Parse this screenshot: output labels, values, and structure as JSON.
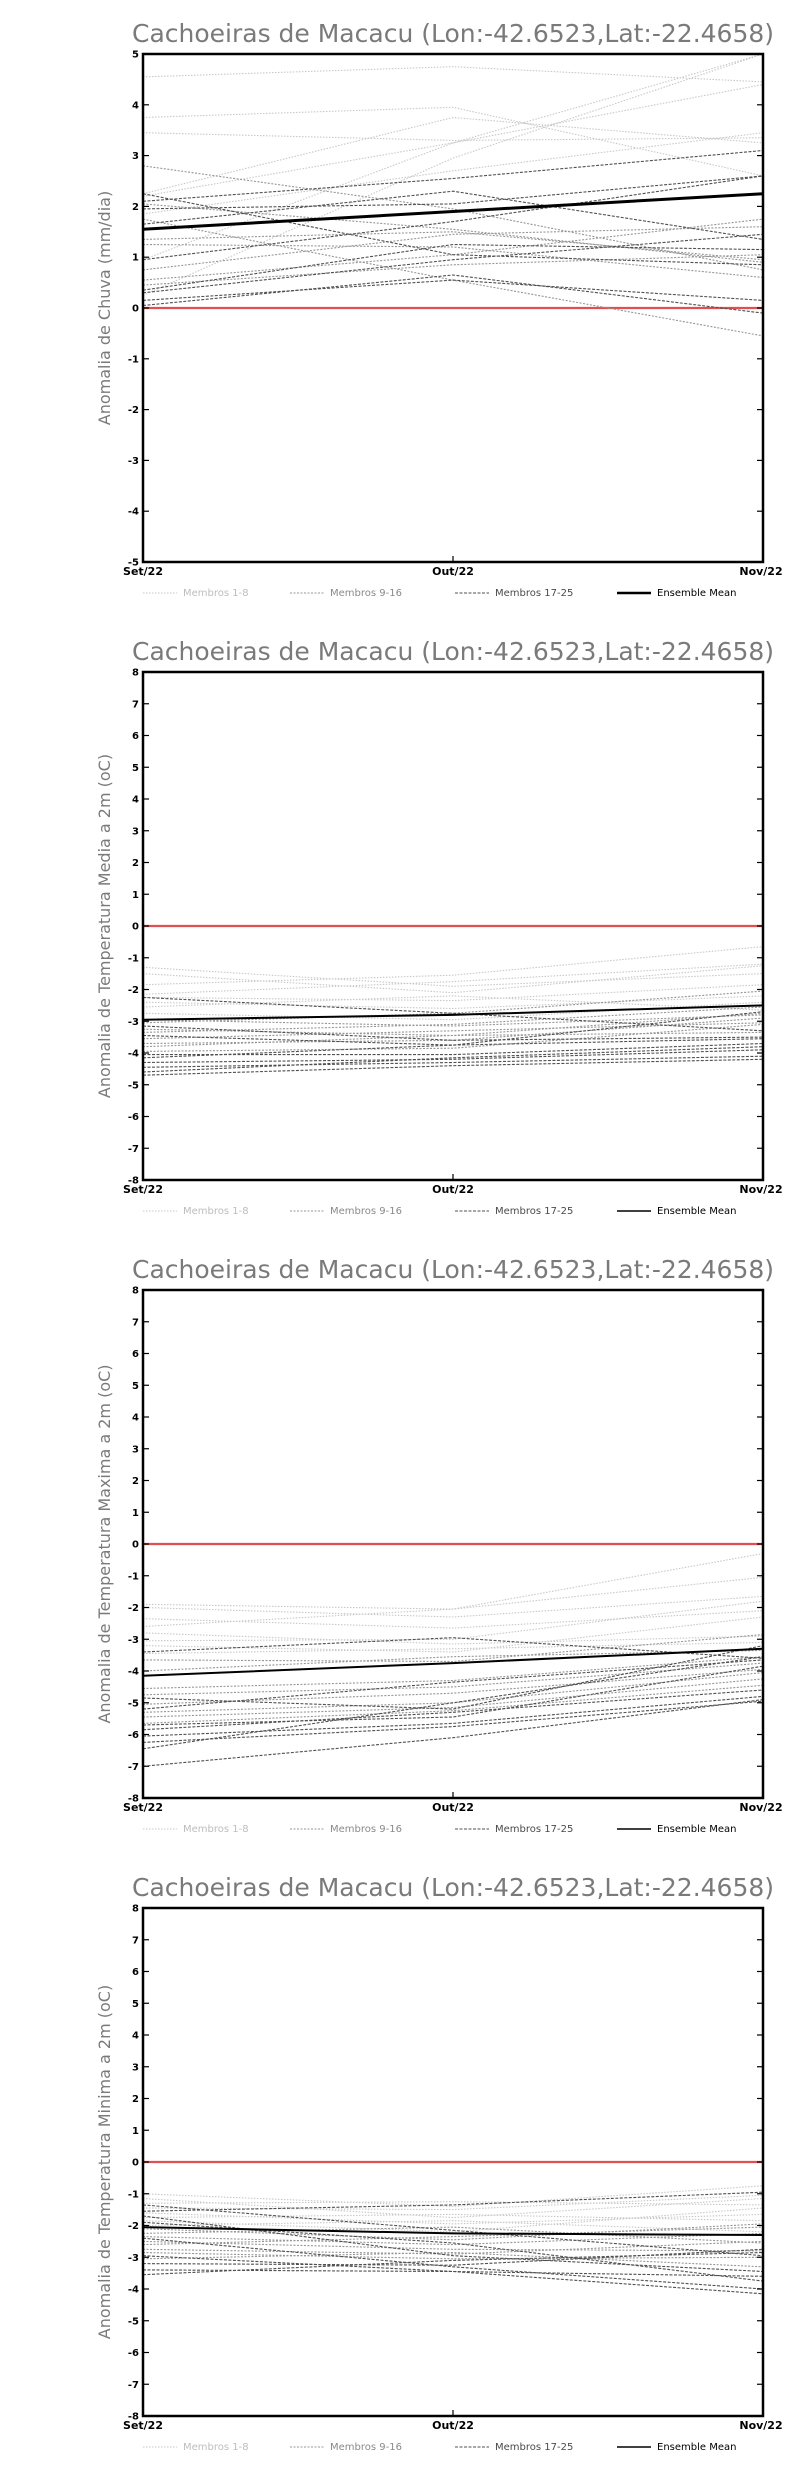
{
  "chart_data": [
    {
      "type": "line",
      "title": "Cachoeiras de Macacu (Lon:-42.6523,Lat:-22.4658)",
      "ylabel": "Anomalia de Chuva (mm/dia)",
      "xlabel": "",
      "categories": [
        "Set/22",
        "Out/22",
        "Nov/22"
      ],
      "ylim": [
        -5,
        5
      ],
      "yticks": [
        -5,
        -4,
        -3,
        -2,
        -1,
        0,
        1,
        2,
        3,
        4,
        5
      ],
      "zero_line_color": "#e05050",
      "legend": [
        "Membros 1-8",
        "Membros 9-16",
        "Membros 17-25",
        "Ensemble Mean"
      ],
      "legend_placement": "bottom",
      "grid": false,
      "ensemble_mean": [
        1.55,
        1.9,
        2.25
      ],
      "members": [
        [
          4.55,
          4.75,
          4.45
        ],
        [
          3.75,
          3.95,
          2.6
        ],
        [
          2.25,
          3.75,
          3.25
        ],
        [
          2.2,
          3.25,
          4.4
        ],
        [
          0.95,
          3.25,
          5.0
        ],
        [
          0.25,
          2.95,
          5.0
        ],
        [
          1.85,
          2.7,
          3.45
        ],
        [
          3.45,
          3.3,
          3.35
        ],
        [
          2.8,
          1.95,
          0.75
        ],
        [
          2.05,
          1.55,
          0.9
        ],
        [
          1.75,
          0.55,
          -0.55
        ],
        [
          1.35,
          1.5,
          0.95
        ],
        [
          1.25,
          1.2,
          0.6
        ],
        [
          0.75,
          1.45,
          1.6
        ],
        [
          0.55,
          1.05,
          1.75
        ],
        [
          0.45,
          0.85,
          1.05
        ],
        [
          0.3,
          0.95,
          1.45
        ],
        [
          0.15,
          0.55,
          0.15
        ],
        [
          1.95,
          2.05,
          2.6
        ],
        [
          2.25,
          1.05,
          0.85
        ],
        [
          0.95,
          1.7,
          2.6
        ],
        [
          0.35,
          1.25,
          1.15
        ],
        [
          1.65,
          2.3,
          1.35
        ],
        [
          2.1,
          2.55,
          3.1
        ],
        [
          0.05,
          0.65,
          -0.1
        ]
      ]
    },
    {
      "type": "line",
      "title": "Cachoeiras de Macacu (Lon:-42.6523,Lat:-22.4658)",
      "ylabel": "Anomalia de Temperatura Media a 2m (oC)",
      "xlabel": "",
      "categories": [
        "Set/22",
        "Out/22",
        "Nov/22"
      ],
      "ylim": [
        -8,
        8
      ],
      "yticks": [
        -8,
        -7,
        -6,
        -5,
        -4,
        -3,
        -2,
        -1,
        0,
        1,
        2,
        3,
        4,
        5,
        6,
        7,
        8
      ],
      "zero_line_color": "#e05050",
      "legend": [
        "Membros 1-8",
        "Membros 9-16",
        "Membros 17-25",
        "Ensemble Mean"
      ],
      "legend_placement": "bottom",
      "grid": false,
      "ensemble_mean": [
        -2.95,
        -2.8,
        -2.5
      ],
      "members": [
        [
          -1.3,
          -1.9,
          -1.5
        ],
        [
          -1.5,
          -2.1,
          -1.25
        ],
        [
          -1.85,
          -1.55,
          -0.65
        ],
        [
          -2.15,
          -1.75,
          -1.2
        ],
        [
          -2.25,
          -2.35,
          -1.85
        ],
        [
          -2.4,
          -2.6,
          -2.2
        ],
        [
          -2.55,
          -2.2,
          -2.65
        ],
        [
          -2.75,
          -2.95,
          -2.4
        ],
        [
          -2.95,
          -3.15,
          -2.8
        ],
        [
          -3.05,
          -2.75,
          -2.05
        ],
        [
          -3.25,
          -3.45,
          -2.75
        ],
        [
          -3.35,
          -3.1,
          -2.55
        ],
        [
          -3.55,
          -3.3,
          -3.05
        ],
        [
          -3.7,
          -3.6,
          -2.9
        ],
        [
          -3.8,
          -3.45,
          -3.35
        ],
        [
          -3.95,
          -3.85,
          -3.1
        ],
        [
          -4.05,
          -4.05,
          -3.7
        ],
        [
          -4.15,
          -3.75,
          -3.55
        ],
        [
          -4.3,
          -4.2,
          -3.9
        ],
        [
          -4.45,
          -4.3,
          -4.1
        ],
        [
          -4.6,
          -4.15,
          -3.8
        ],
        [
          -4.7,
          -4.4,
          -4.2
        ],
        [
          -2.25,
          -2.75,
          -3.3
        ],
        [
          -3.15,
          -3.6,
          -3.5
        ],
        [
          -3.45,
          -3.75,
          -2.7
        ]
      ]
    },
    {
      "type": "line",
      "title": "Cachoeiras de Macacu (Lon:-42.6523,Lat:-22.4658)",
      "ylabel": "Anomalia de Temperatura Maxima a 2m (oC)",
      "xlabel": "",
      "categories": [
        "Set/22",
        "Out/22",
        "Nov/22"
      ],
      "ylim": [
        -8,
        8
      ],
      "yticks": [
        -8,
        -7,
        -6,
        -5,
        -4,
        -3,
        -2,
        -1,
        0,
        1,
        2,
        3,
        4,
        5,
        6,
        7,
        8
      ],
      "zero_line_color": "#e05050",
      "legend": [
        "Membros 1-8",
        "Membros 9-16",
        "Membros 17-25",
        "Ensemble Mean"
      ],
      "legend_placement": "bottom",
      "grid": false,
      "ensemble_mean": [
        -4.15,
        -3.75,
        -3.3
      ],
      "members": [
        [
          -1.9,
          -2.05,
          -1.05
        ],
        [
          -2.0,
          -2.3,
          -1.65
        ],
        [
          -2.35,
          -2.65,
          -2.1
        ],
        [
          -2.6,
          -2.05,
          -0.3
        ],
        [
          -2.8,
          -3.15,
          -2.9
        ],
        [
          -3.05,
          -3.0,
          -1.8
        ],
        [
          -3.2,
          -3.4,
          -2.3
        ],
        [
          -3.45,
          -3.3,
          -3.1
        ],
        [
          -3.65,
          -3.7,
          -2.85
        ],
        [
          -4.0,
          -3.55,
          -3.35
        ],
        [
          -4.55,
          -4.3,
          -3.55
        ],
        [
          -4.75,
          -4.5,
          -3.75
        ],
        [
          -5.05,
          -4.7,
          -3.95
        ],
        [
          -5.3,
          -5.0,
          -4.05
        ],
        [
          -5.45,
          -5.15,
          -4.25
        ],
        [
          -5.65,
          -5.25,
          -4.45
        ],
        [
          -5.85,
          -5.3,
          -4.6
        ],
        [
          -6.05,
          -5.65,
          -4.8
        ],
        [
          -6.25,
          -5.75,
          -4.95
        ],
        [
          -6.45,
          -5.0,
          -3.55
        ],
        [
          -7.0,
          -6.1,
          -4.9
        ],
        [
          -5.2,
          -4.35,
          -3.65
        ],
        [
          -3.4,
          -2.95,
          -3.6
        ],
        [
          -4.85,
          -5.2,
          -3.2
        ],
        [
          -5.7,
          -5.45,
          -3.85
        ]
      ]
    },
    {
      "type": "line",
      "title": "Cachoeiras de Macacu (Lon:-42.6523,Lat:-22.4658)",
      "ylabel": "Anomalia de Temperatura Minima a 2m (oC)",
      "xlabel": "",
      "categories": [
        "Set/22",
        "Out/22",
        "Nov/22"
      ],
      "ylim": [
        -8,
        8
      ],
      "yticks": [
        -8,
        -7,
        -6,
        -5,
        -4,
        -3,
        -2,
        -1,
        0,
        1,
        2,
        3,
        4,
        5,
        6,
        7,
        8
      ],
      "zero_line_color": "#e05050",
      "legend": [
        "Membros 1-8",
        "Membros 9-16",
        "Membros 17-25",
        "Ensemble Mean"
      ],
      "legend_placement": "bottom",
      "grid": false,
      "ensemble_mean": [
        -2.05,
        -2.25,
        -2.3
      ],
      "members": [
        [
          -1.0,
          -1.4,
          -0.75
        ],
        [
          -1.15,
          -1.75,
          -1.15
        ],
        [
          -1.3,
          -1.25,
          -1.35
        ],
        [
          -1.45,
          -1.5,
          -1.05
        ],
        [
          -1.6,
          -1.95,
          -1.65
        ],
        [
          -1.75,
          -1.65,
          -1.85
        ],
        [
          -1.85,
          -2.2,
          -1.45
        ],
        [
          -2.0,
          -1.85,
          -2.2
        ],
        [
          -2.1,
          -2.45,
          -1.95
        ],
        [
          -2.25,
          -2.05,
          -2.55
        ],
        [
          -2.35,
          -2.6,
          -2.25
        ],
        [
          -2.5,
          -2.75,
          -2.8
        ],
        [
          -2.6,
          -2.35,
          -2.05
        ],
        [
          -2.75,
          -2.9,
          -2.5
        ],
        [
          -2.85,
          -3.05,
          -3.0
        ],
        [
          -3.05,
          -2.85,
          -3.3
        ],
        [
          -3.2,
          -3.25,
          -2.75
        ],
        [
          -3.4,
          -3.45,
          -3.6
        ],
        [
          -1.35,
          -2.15,
          -2.95
        ],
        [
          -1.9,
          -2.55,
          -3.75
        ],
        [
          -2.4,
          -3.3,
          -4.0
        ],
        [
          -3.55,
          -3.1,
          -2.85
        ],
        [
          -1.55,
          -1.35,
          -0.95
        ],
        [
          -1.7,
          -2.95,
          -3.45
        ],
        [
          -2.95,
          -3.45,
          -4.15
        ]
      ]
    }
  ]
}
